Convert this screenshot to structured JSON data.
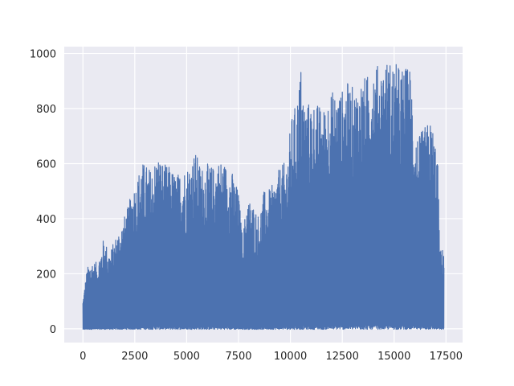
{
  "chart_data": {
    "type": "line",
    "title": "",
    "xlabel": "",
    "ylabel": "",
    "xlim": [
      -900,
      18300
    ],
    "ylim": [
      -50,
      1025
    ],
    "x_ticks": [
      0,
      2500,
      5000,
      7500,
      10000,
      12500,
      15000,
      17500
    ],
    "x_tick_labels": [
      "0",
      "2500",
      "5000",
      "7500",
      "10000",
      "12500",
      "15000",
      "17500"
    ],
    "y_ticks": [
      0,
      200,
      400,
      600,
      800,
      1000
    ],
    "y_tick_labels": [
      "0",
      "200",
      "400",
      "600",
      "800",
      "1000"
    ],
    "grid": true,
    "style": {
      "background": "#eaeaf2",
      "grid_color": "#ffffff",
      "line_color": "#4c72b0"
    },
    "series": [
      {
        "x_range": [
          0,
          17400
        ],
        "envelope": {
          "x": [
            0,
            200,
            400,
            700,
            1000,
            1300,
            1600,
            1900,
            2200,
            2400,
            2600,
            2800,
            3000,
            3300,
            3600,
            3900,
            4200,
            4500,
            4800,
            5100,
            5400,
            5700,
            6000,
            6300,
            6600,
            6900,
            7200,
            7500,
            7700,
            7900,
            8100,
            8300,
            8500,
            8700,
            8900,
            9200,
            9500,
            9800,
            10100,
            10300,
            10500,
            10700,
            11000,
            11300,
            11600,
            11900,
            12200,
            12500,
            12800,
            13100,
            13400,
            13700,
            14000,
            14300,
            14600,
            14900,
            15200,
            15500,
            15800,
            16000,
            16200,
            16500,
            16800,
            17000,
            17100,
            17200,
            17300,
            17400
          ],
          "peak": [
            110,
            220,
            250,
            240,
            330,
            280,
            340,
            390,
            450,
            520,
            540,
            610,
            600,
            580,
            640,
            600,
            590,
            560,
            580,
            600,
            650,
            590,
            600,
            590,
            620,
            600,
            570,
            500,
            330,
            480,
            465,
            440,
            410,
            500,
            500,
            530,
            590,
            610,
            790,
            820,
            960,
            820,
            830,
            820,
            800,
            870,
            860,
            870,
            900,
            870,
            910,
            920,
            980,
            950,
            980,
            975,
            960,
            950,
            960,
            720,
            700,
            740,
            760,
            680,
            620,
            300,
            280,
            310
          ]
        }
      }
    ]
  }
}
